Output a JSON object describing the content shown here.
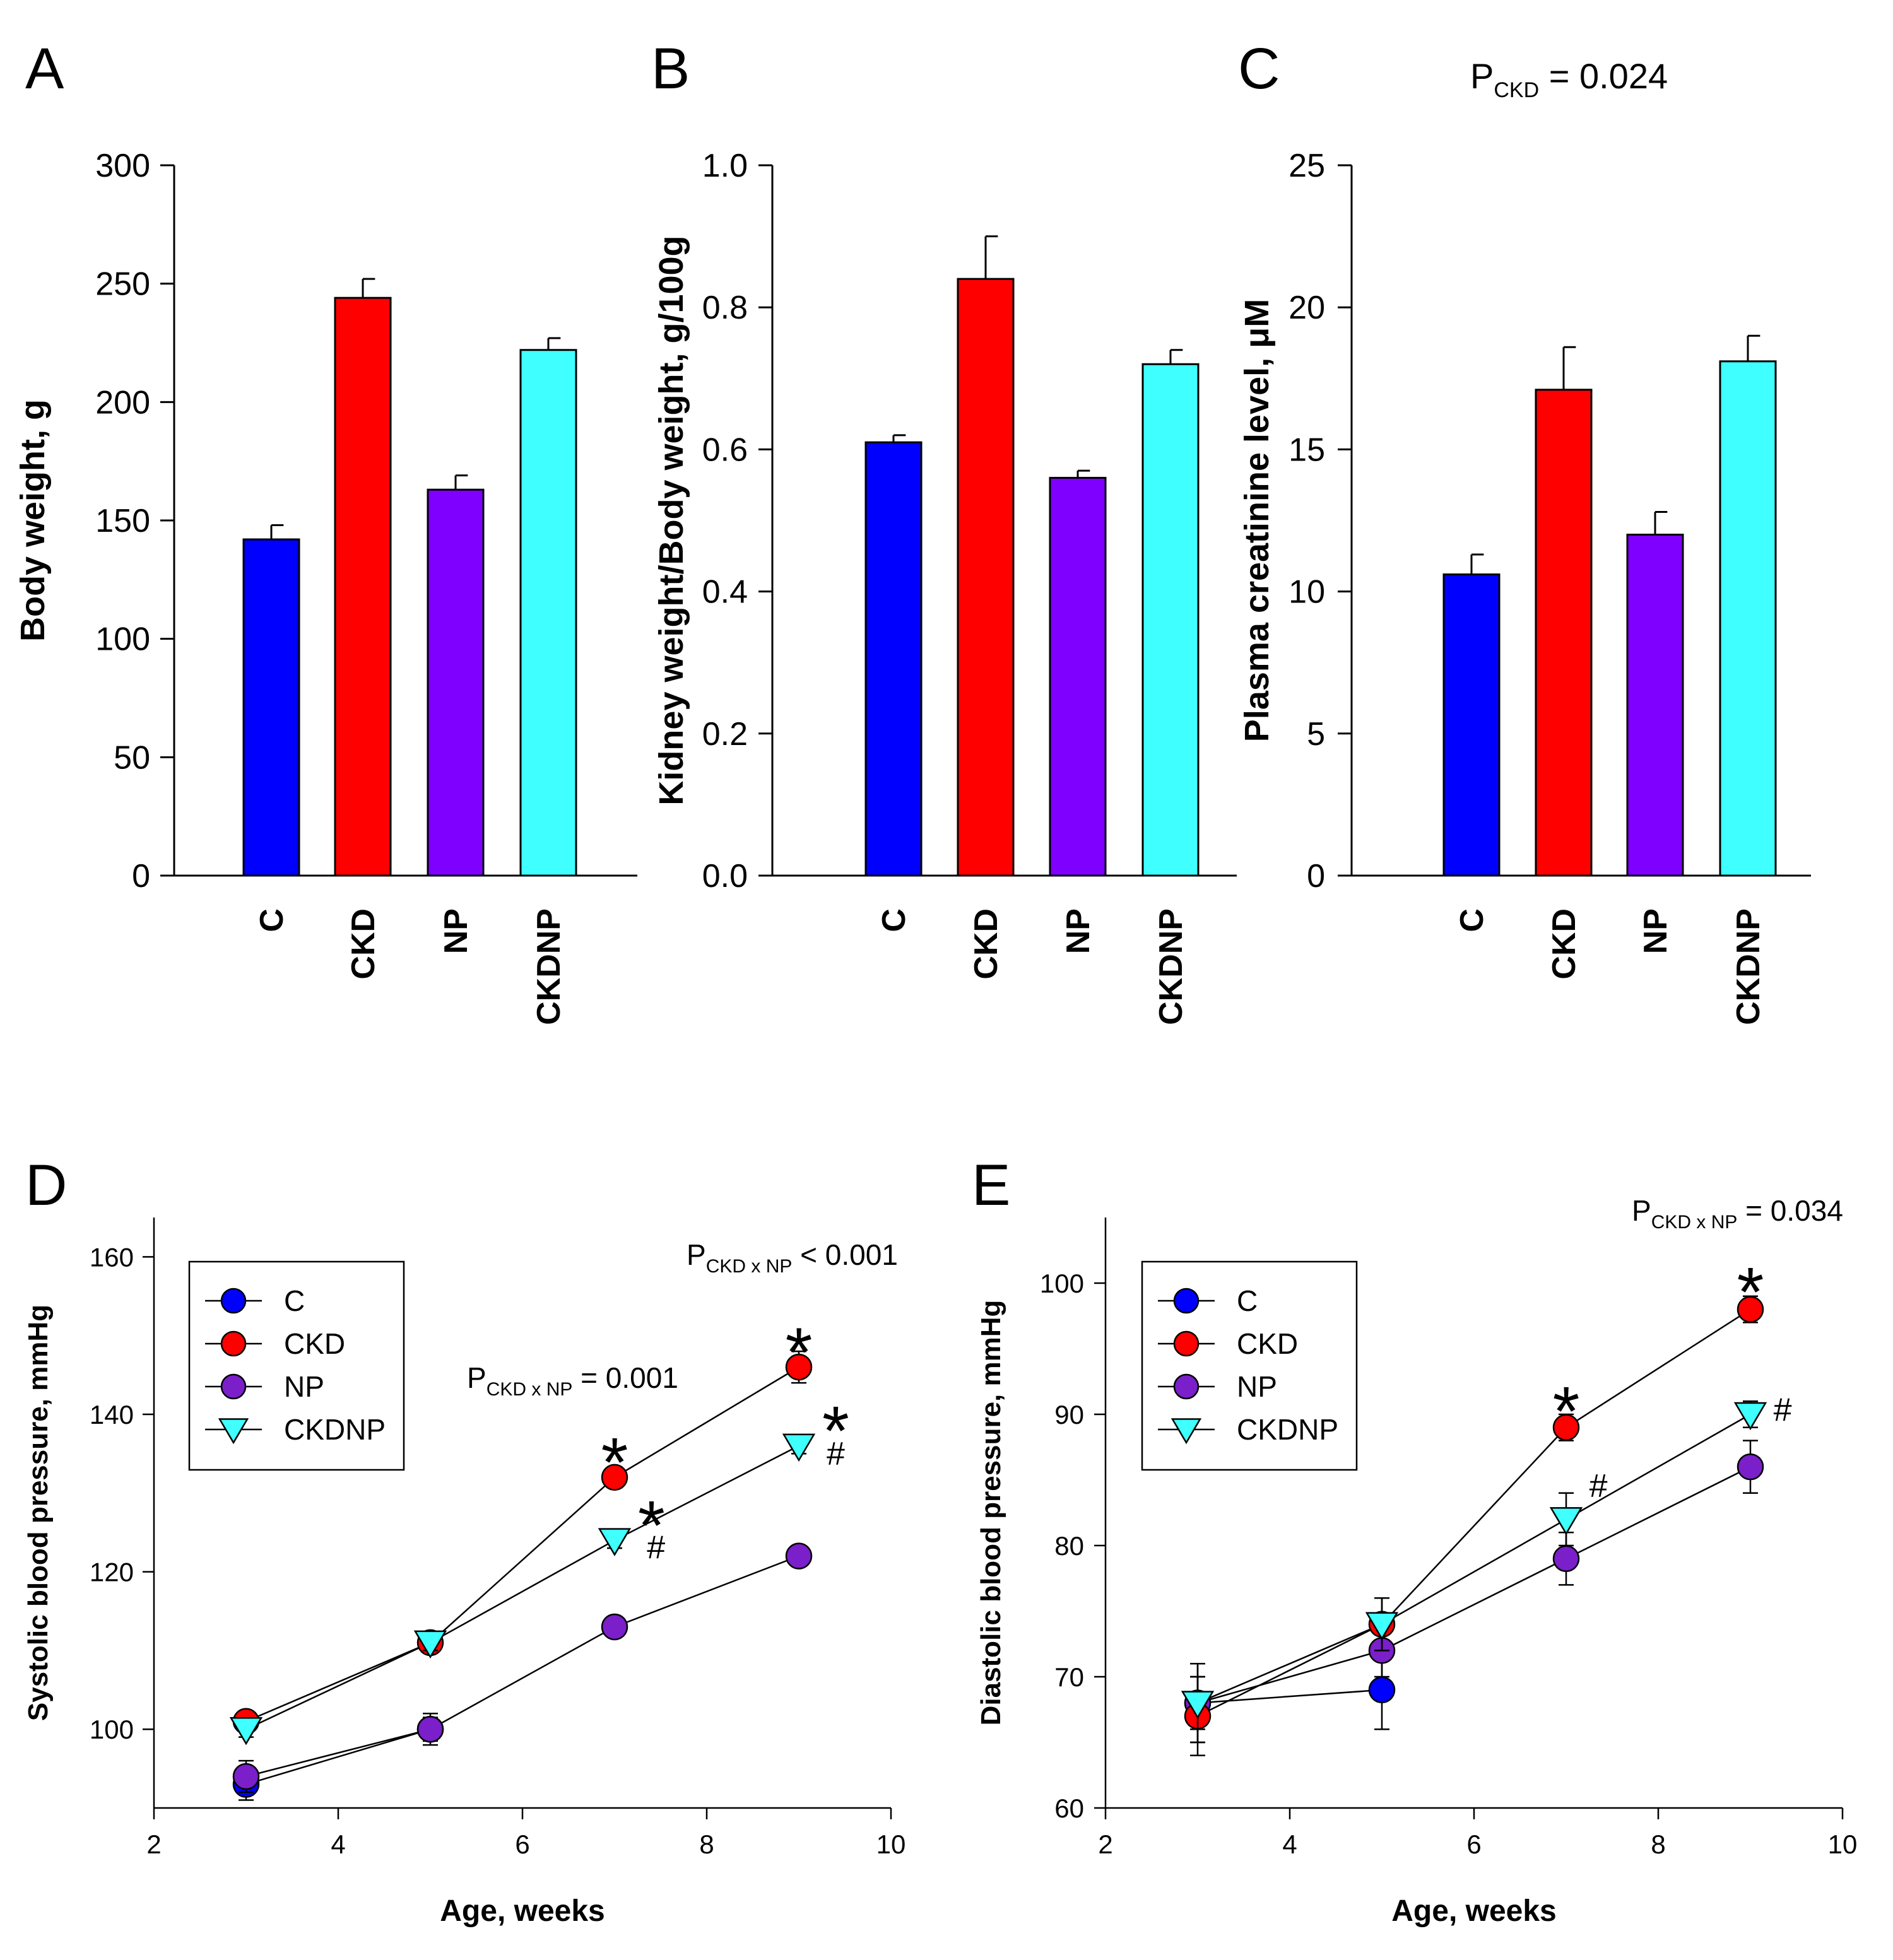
{
  "colors": {
    "C": "#0000ff",
    "CKD": "#ff0000",
    "NP": "#7f00ff",
    "CKDNP": "#40ffff"
  },
  "line_colors": {
    "C": "#0000ff",
    "CKD": "#ff0000",
    "NP": "#7a1fc9",
    "CKDNP": "#40ffff"
  },
  "categories": [
    "C",
    "CKD",
    "NP",
    "CKDNP"
  ],
  "legend": [
    "C",
    "CKD",
    "NP",
    "CKDNP"
  ],
  "panels": {
    "A": {
      "letter": "A"
    },
    "B": {
      "letter": "B"
    },
    "C": {
      "letter": "C",
      "annotation": {
        "main": "P",
        "sub": "CKD",
        "rest": " = 0.024"
      }
    },
    "D": {
      "letter": "D",
      "ann1": {
        "main": "P",
        "sub": "CKD x NP",
        "rest": " = 0.001"
      },
      "ann2": {
        "main": "P",
        "sub": "CKD x NP",
        "rest": " < 0.001"
      }
    },
    "E": {
      "letter": "E",
      "ann1": {
        "main": "P",
        "sub": "CKD x NP",
        "rest": " = 0.034"
      }
    }
  },
  "chart_data": [
    {
      "panel": "A",
      "type": "bar",
      "ylabel": "Body weight, g",
      "categories": [
        "C",
        "CKD",
        "NP",
        "CKDNP"
      ],
      "values": [
        142,
        244,
        163,
        222
      ],
      "errors": [
        6,
        8,
        6,
        5
      ],
      "ylim": [
        0,
        300
      ],
      "yticks": [
        0,
        50,
        100,
        150,
        200,
        250,
        300
      ],
      "ytick_labels": [
        "0",
        "50",
        "100",
        "150",
        "200",
        "250",
        "300"
      ]
    },
    {
      "panel": "B",
      "type": "bar",
      "ylabel": "Kidney weight/Body weight, g/100g",
      "categories": [
        "C",
        "CKD",
        "NP",
        "CKDNP"
      ],
      "values": [
        0.61,
        0.84,
        0.56,
        0.72
      ],
      "errors": [
        0.01,
        0.06,
        0.01,
        0.02
      ],
      "ylim": [
        0,
        1.0
      ],
      "yticks": [
        0,
        0.2,
        0.4,
        0.6,
        0.8,
        1.0
      ],
      "ytick_labels": [
        "0.0",
        "0.2",
        "0.4",
        "0.6",
        "0.8",
        "1.0"
      ]
    },
    {
      "panel": "C",
      "type": "bar",
      "ylabel": "Plasma creatinine level, μM",
      "categories": [
        "C",
        "CKD",
        "NP",
        "CKDNP"
      ],
      "values": [
        10.6,
        17.1,
        12.0,
        18.1
      ],
      "errors": [
        0.7,
        1.5,
        0.8,
        0.9
      ],
      "ylim": [
        0,
        25
      ],
      "yticks": [
        0,
        5,
        10,
        15,
        20,
        25
      ],
      "ytick_labels": [
        "0",
        "5",
        "10",
        "15",
        "20",
        "25"
      ]
    },
    {
      "panel": "D",
      "type": "line",
      "xlabel": "Age, weeks",
      "ylabel": "Systolic blood pressure, mmHg",
      "xlim": [
        2,
        10
      ],
      "xticks": [
        2,
        4,
        6,
        8,
        10
      ],
      "xtick_labels": [
        "2",
        "4",
        "6",
        "8",
        "10"
      ],
      "ylim": [
        90,
        165
      ],
      "yticks": [
        100,
        120,
        140,
        160
      ],
      "ytick_labels": [
        "100",
        "120",
        "140",
        "160"
      ],
      "series": [
        {
          "name": "C",
          "x": [
            3,
            5
          ],
          "y": [
            93,
            100
          ],
          "err": [
            2,
            2
          ]
        },
        {
          "name": "NP",
          "x": [
            3,
            5,
            7,
            9
          ],
          "y": [
            94,
            100,
            113,
            122
          ],
          "err": [
            2,
            1.5,
            1,
            1
          ]
        },
        {
          "name": "CKD",
          "x": [
            3,
            5,
            7,
            9
          ],
          "y": [
            101,
            111,
            132,
            146
          ],
          "err": [
            1,
            1,
            1,
            2
          ]
        },
        {
          "name": "CKDNP",
          "x": [
            3,
            5,
            7,
            9
          ],
          "y": [
            100,
            111,
            124,
            136
          ],
          "err": [
            1,
            1,
            1,
            1
          ]
        }
      ],
      "marks": [
        {
          "x": 7,
          "y": 135.5,
          "text": "*"
        },
        {
          "x": 7.4,
          "y": 127.5,
          "text": "*"
        },
        {
          "x": 7.45,
          "y": 121.7,
          "text": "#"
        },
        {
          "x": 9,
          "y": 149.5,
          "text": "*"
        },
        {
          "x": 9.4,
          "y": 139.5,
          "text": "*"
        },
        {
          "x": 9.4,
          "y": 133.6,
          "text": "#"
        }
      ]
    },
    {
      "panel": "E",
      "type": "line",
      "xlabel": "Age, weeks",
      "ylabel": "Diastolic blood pressure, mmHg",
      "xlim": [
        2,
        10
      ],
      "xticks": [
        2,
        4,
        6,
        8,
        10
      ],
      "xtick_labels": [
        "2",
        "4",
        "6",
        "8",
        "10"
      ],
      "ylim": [
        60,
        105
      ],
      "yticks": [
        60,
        70,
        80,
        90,
        100
      ],
      "ytick_labels": [
        "60",
        "70",
        "80",
        "90",
        "100"
      ],
      "series": [
        {
          "name": "C",
          "x": [
            3,
            5
          ],
          "y": [
            68,
            69
          ],
          "err": [
            3,
            3
          ]
        },
        {
          "name": "NP",
          "x": [
            3,
            5,
            7,
            9
          ],
          "y": [
            68,
            72,
            79,
            86
          ],
          "err": [
            3,
            2,
            2,
            2
          ]
        },
        {
          "name": "CKD",
          "x": [
            3,
            5,
            7,
            9
          ],
          "y": [
            67,
            74,
            89,
            98
          ],
          "err": [
            3,
            2,
            1,
            1
          ]
        },
        {
          "name": "CKDNP",
          "x": [
            3,
            5,
            7,
            9
          ],
          "y": [
            68,
            74,
            82,
            90
          ],
          "err": [
            2,
            2,
            2,
            1
          ]
        }
      ],
      "marks": [
        {
          "x": 7,
          "y": 91.2,
          "text": "*"
        },
        {
          "x": 7.35,
          "y": 83.7,
          "text": "#"
        },
        {
          "x": 9,
          "y": 100.3,
          "text": "*"
        },
        {
          "x": 9.35,
          "y": 89.5,
          "text": "#"
        }
      ]
    }
  ]
}
